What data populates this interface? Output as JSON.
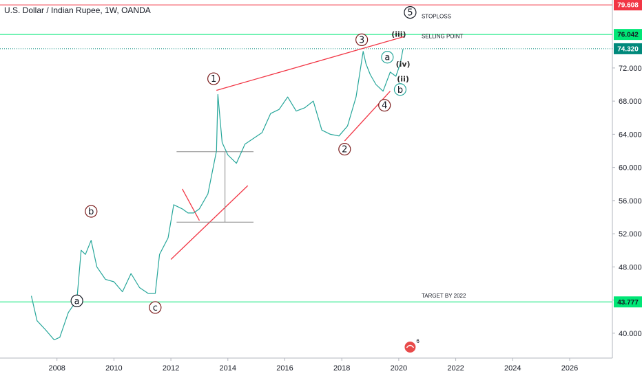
{
  "title": "U.S. Dollar / Indian Rupee, 1W, OANDA",
  "chart_data": {
    "type": "line",
    "title": "U.S. Dollar / Indian Rupee, 1W, OANDA",
    "xlim": [
      2006.0,
      2027.5
    ],
    "ylim": [
      37.0,
      80.2
    ],
    "x_ticks": [
      2008,
      2010,
      2012,
      2014,
      2016,
      2018,
      2020,
      2022,
      2024,
      2026
    ],
    "x_tick_labels": [
      "2008",
      "2010",
      "2012",
      "2014",
      "2016",
      "2018",
      "2020",
      "2022",
      "2024",
      "2026"
    ],
    "y_ticks": [
      40,
      44,
      48,
      52,
      56,
      60,
      64,
      68,
      72
    ],
    "y_tick_labels": [
      "40.000",
      "44.000",
      "48.000",
      "52.000",
      "56.000",
      "60.000",
      "64.000",
      "68.000",
      "72.000"
    ],
    "grid": false,
    "series": [
      {
        "x": [
          2007.1,
          2007.3,
          2007.6,
          2007.9,
          2008.1,
          2008.4,
          2008.7,
          2008.85,
          2009.0,
          2009.2,
          2009.4,
          2009.7,
          2010.0,
          2010.3,
          2010.6,
          2010.9,
          2011.2,
          2011.45,
          2011.6,
          2011.9,
          2012.1,
          2012.4,
          2012.6,
          2012.8,
          2013.0,
          2013.3,
          2013.6,
          2013.65,
          2013.8,
          2014.0,
          2014.3,
          2014.6,
          2014.9,
          2015.2,
          2015.5,
          2015.8,
          2016.1,
          2016.4,
          2016.7,
          2017.0,
          2017.3,
          2017.6,
          2017.9,
          2018.2,
          2018.5,
          2018.75,
          2018.85,
          2019.0,
          2019.2,
          2019.45,
          2019.7,
          2019.9,
          2020.05,
          2020.15
        ],
        "y": [
          44.5,
          41.5,
          40.4,
          39.2,
          39.5,
          42.5,
          44.0,
          50.0,
          49.5,
          51.2,
          48.0,
          46.5,
          46.2,
          45.0,
          47.2,
          45.5,
          44.8,
          44.8,
          49.5,
          51.5,
          55.5,
          55.0,
          54.5,
          54.5,
          55.0,
          56.8,
          62.0,
          68.8,
          63.0,
          61.5,
          60.5,
          62.8,
          63.5,
          64.2,
          66.5,
          67.0,
          68.5,
          66.8,
          67.2,
          68.0,
          64.5,
          64.0,
          63.8,
          65.0,
          68.5,
          74.0,
          72.5,
          71.2,
          70.0,
          69.2,
          71.5,
          71.0,
          72.5,
          74.3
        ]
      }
    ],
    "last_price": 74.32,
    "horizontal_levels": [
      {
        "value": 79.608,
        "color": "#f23645"
      },
      {
        "value": 76.042,
        "color": "#00e676"
      },
      {
        "value": 43.777,
        "color": "#00e676"
      }
    ],
    "annotations": [
      {
        "text": "1",
        "x": 2013.5,
        "y": 70.7,
        "circle": true,
        "color": "#7b1c1c"
      },
      {
        "text": "2",
        "x": 2018.1,
        "y": 62.2,
        "circle": true,
        "color": "#7b1c1c"
      },
      {
        "text": "3",
        "x": 2018.7,
        "y": 75.4,
        "circle": true,
        "color": "#7b1c1c"
      },
      {
        "text": "4",
        "x": 2019.5,
        "y": 67.5,
        "circle": true,
        "color": "#7b1c1c"
      },
      {
        "text": "5",
        "x": 2020.4,
        "y": 78.7,
        "circle": true,
        "color": "#131722"
      },
      {
        "text": "a",
        "x": 2008.7,
        "y": 43.9,
        "circle": true,
        "color": "#131722"
      },
      {
        "text": "b",
        "x": 2009.2,
        "y": 54.7,
        "circle": true,
        "color": "#7b1c1c"
      },
      {
        "text": "c",
        "x": 2011.45,
        "y": 43.1,
        "circle": true,
        "color": "#7b1c1c"
      },
      {
        "text": "a",
        "x": 2019.6,
        "y": 73.3,
        "circle": true,
        "color": "#26a69a"
      },
      {
        "text": "b",
        "x": 2020.05,
        "y": 69.4,
        "circle": true,
        "color": "#26a69a"
      },
      {
        "text": "(iii)",
        "x": 2020.0,
        "y": 76.1,
        "circle": false,
        "color": "#2b2b2b"
      },
      {
        "text": "(iv)",
        "x": 2020.15,
        "y": 72.5,
        "circle": false,
        "color": "#2b2b2b"
      },
      {
        "text": "(ii)",
        "x": 2020.15,
        "y": 70.7,
        "circle": false,
        "color": "#2b2b2b"
      }
    ],
    "notes": [
      {
        "text": "STOPLOSS",
        "x": 2020.8,
        "y": 78.0
      },
      {
        "text": "SELLING POINT",
        "x": 2020.8,
        "y": 75.6
      },
      {
        "text": "TARGET BY 2022",
        "x": 2020.8,
        "y": 44.3
      }
    ]
  },
  "price_labels": [
    "79.608",
    "76.042",
    "74.320",
    "43.777"
  ],
  "event_badge": {
    "count": "6"
  },
  "colors": {
    "price_line": "#26a69a",
    "stoploss": "#f23645",
    "level_green": "#00e676",
    "trend_red": "#f23645",
    "wave_circle": "#7b1c1c",
    "last_price_label": "#00897b"
  }
}
